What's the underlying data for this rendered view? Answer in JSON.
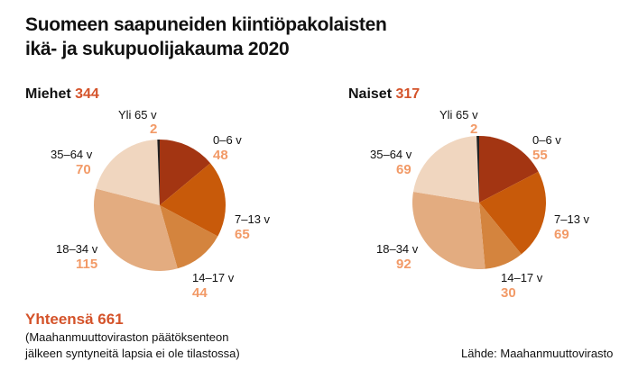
{
  "title_line1": "Suomeen saapuneiden kiintiöpakolaisten",
  "title_line2": "ikä- ja sukupuolijakauma 2020",
  "total_label": "Yhteensä 661",
  "note_line1": "(Maahanmuuttoviraston päätöksenteon",
  "note_line2": "jälkeen syntyneitä lapsia ei ole tilastossa)",
  "source": "Lähde: Maahanmuuttovirasto",
  "colors": [
    "#a33512",
    "#c85a0a",
    "#d4843e",
    "#e3ac80",
    "#f0d6bf",
    "#222222"
  ],
  "chart_data": [
    {
      "type": "pie",
      "title": "Miehet",
      "total": "344",
      "categories": [
        "0–6 v",
        "7–13 v",
        "14–17 v",
        "18–34 v",
        "35–64 v",
        "Yli 65 v"
      ],
      "values": [
        48,
        65,
        44,
        115,
        70,
        2
      ]
    },
    {
      "type": "pie",
      "title": "Naiset",
      "total": "317",
      "categories": [
        "0–6 v",
        "7–13 v",
        "14–17 v",
        "18–34 v",
        "35–64 v",
        "Yli 65 v"
      ],
      "values": [
        55,
        69,
        30,
        92,
        69,
        2
      ]
    }
  ]
}
